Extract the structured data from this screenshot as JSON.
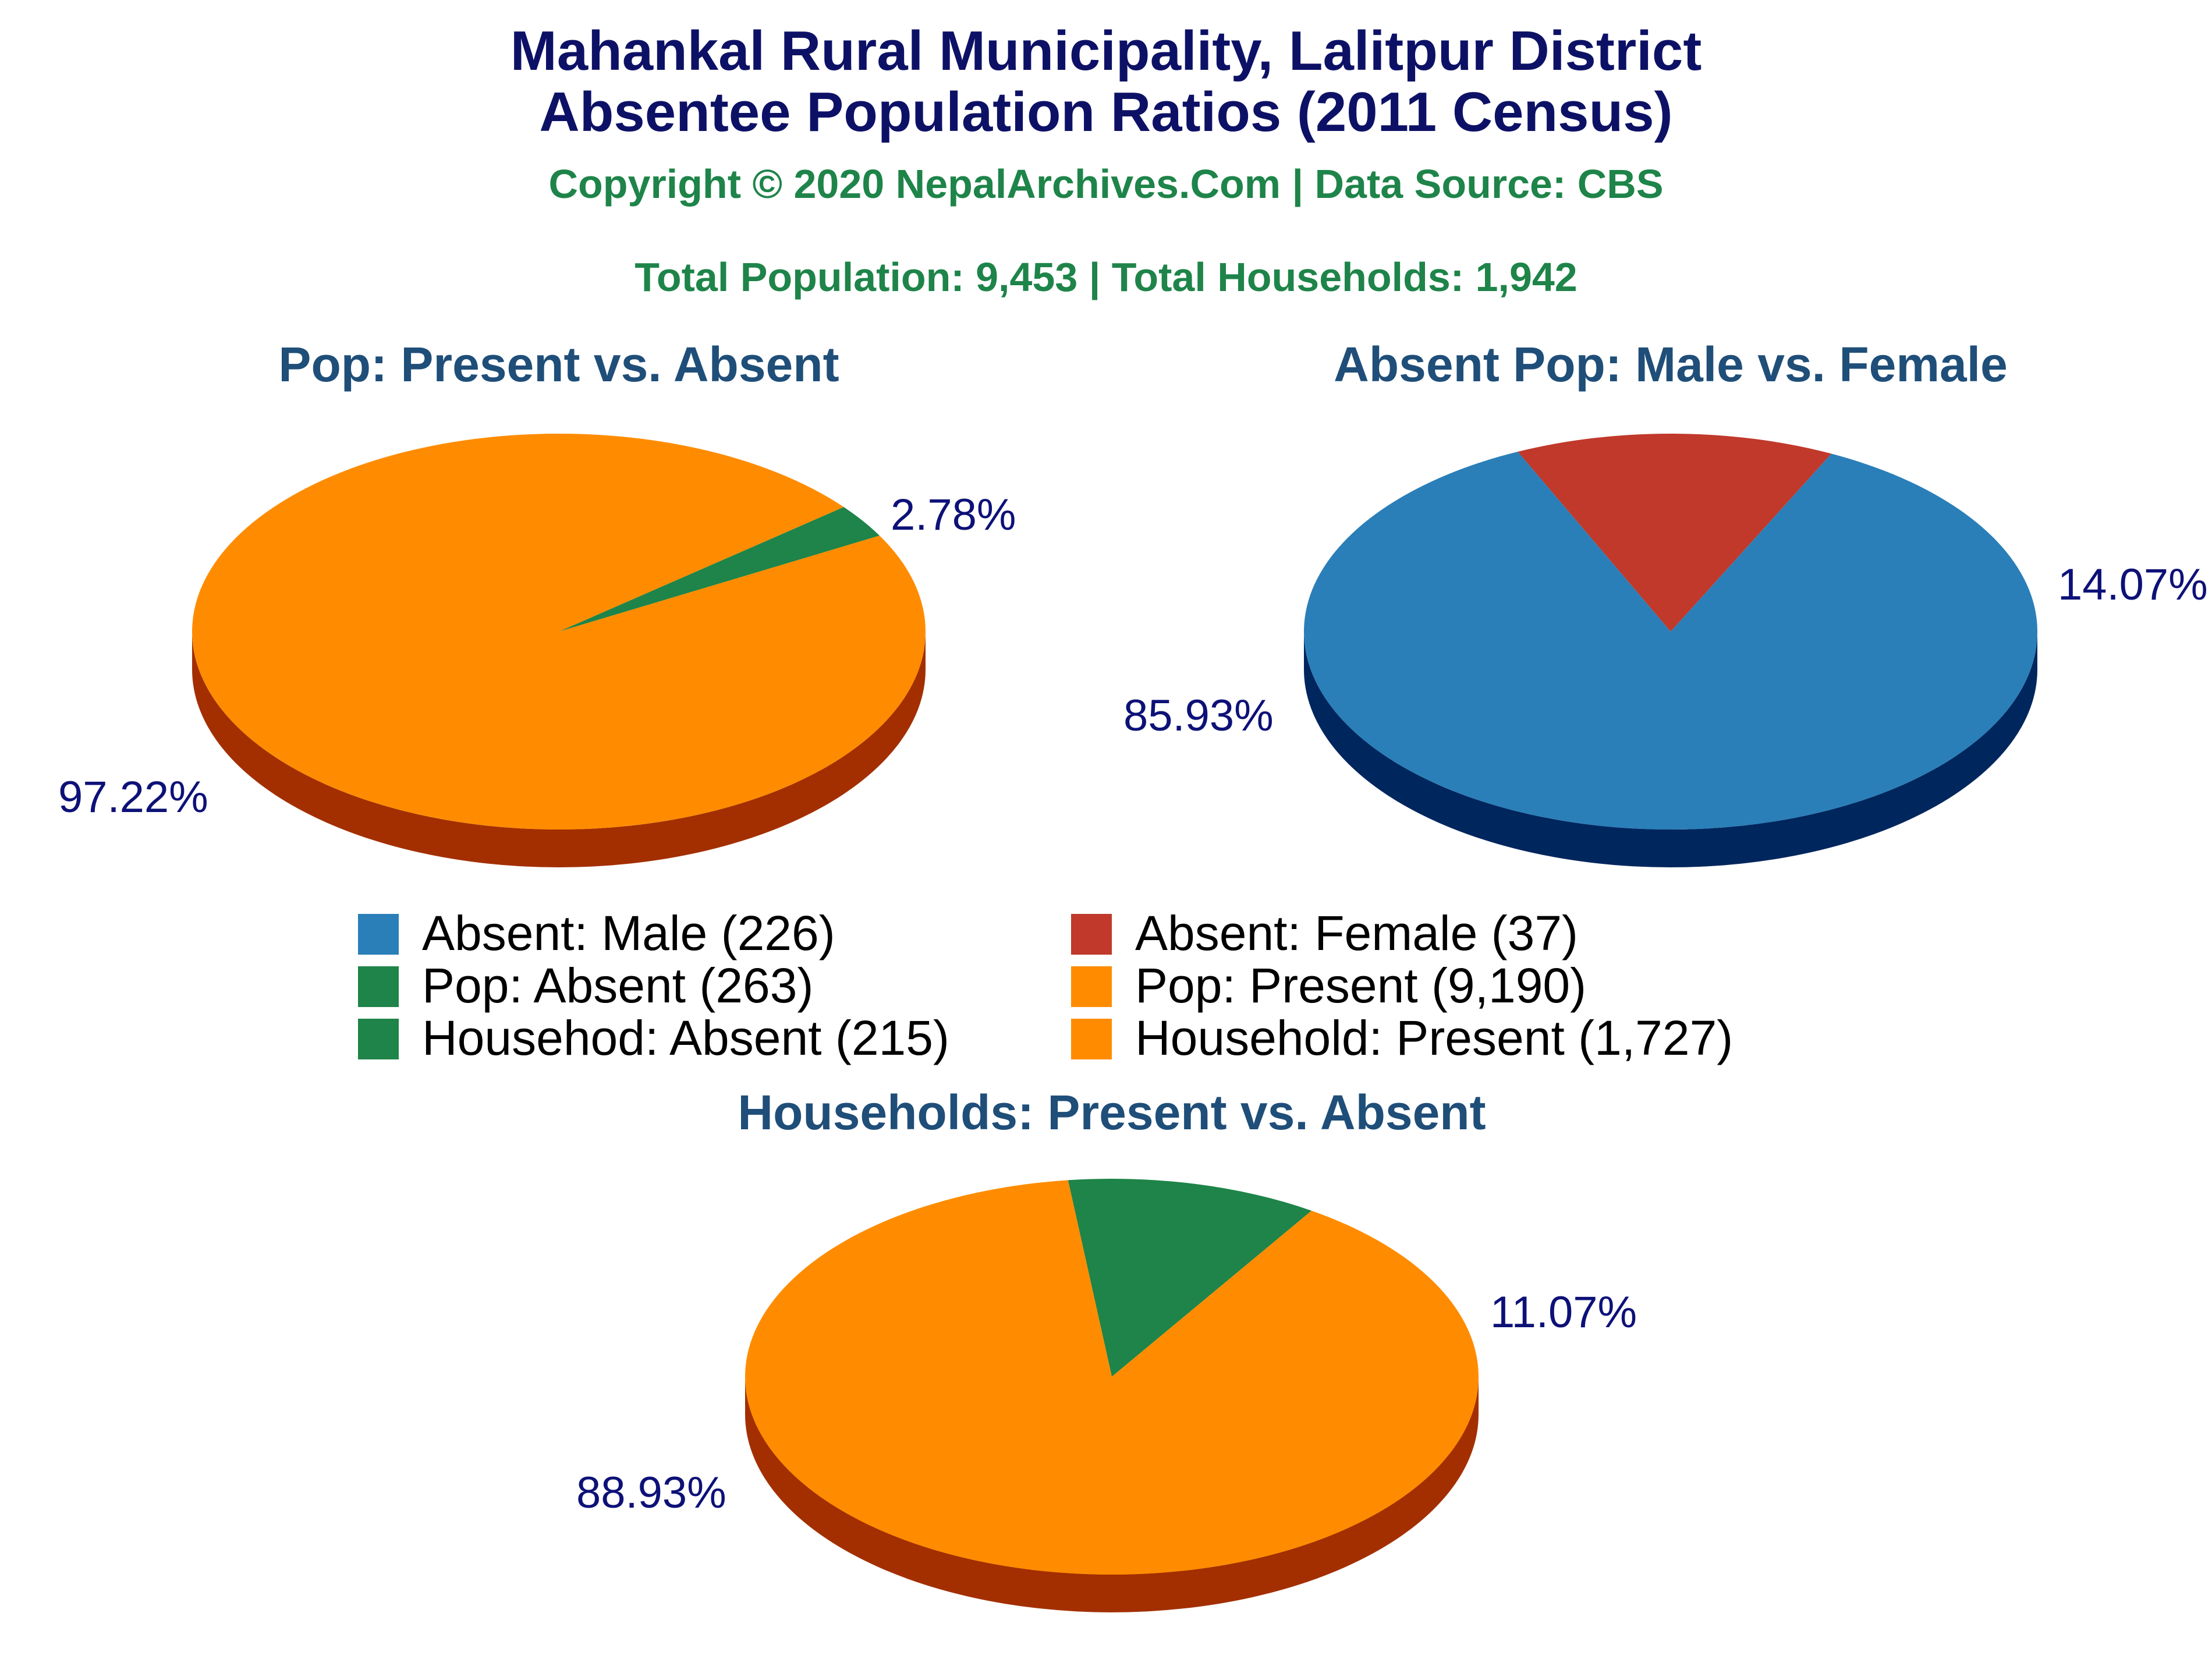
{
  "title_line1": "Mahankal Rural Municipality, Lalitpur District",
  "title_line2": "Absentee Population Ratios (2011 Census)",
  "copyright": "Copyright © 2020 NepalArchives.Com | Data Source: CBS",
  "totals": "Total Population: 9,453 | Total Households: 1,942",
  "colors": {
    "title": "#0d1166",
    "green_text": "#1e8449",
    "subtitle": "#1f4e79",
    "pct_label": "#0d1177"
  },
  "chart_data": [
    {
      "type": "pie",
      "title": "Pop: Present vs. Absent",
      "slices": [
        {
          "label": "Pop: Absent",
          "value": 263,
          "percent_label": "2.78%",
          "color": "#1e8449",
          "side_color": "#0f4a27"
        },
        {
          "label": "Pop: Present",
          "value": 9190,
          "percent_label": "97.22%",
          "color": "#ff8c00",
          "side_color": "#a32f00"
        }
      ]
    },
    {
      "type": "pie",
      "title": "Absent Pop: Male vs. Female",
      "slices": [
        {
          "label": "Absent: Female",
          "value": 37,
          "percent_label": "14.07%",
          "color": "#c0392b",
          "side_color": "#6e0f0f"
        },
        {
          "label": "Absent: Male",
          "value": 226,
          "percent_label": "85.93%",
          "color": "#2a7fb8",
          "side_color": "#00265e"
        }
      ]
    },
    {
      "type": "pie",
      "title": "Households: Present vs. Absent",
      "slices": [
        {
          "label": "Househod: Absent",
          "value": 215,
          "percent_label": "11.07%",
          "color": "#1e8449",
          "side_color": "#0f4a27"
        },
        {
          "label": "Household: Present",
          "value": 1727,
          "percent_label": "88.93%",
          "color": "#ff8c00",
          "side_color": "#a32f00"
        }
      ]
    }
  ],
  "legend": [
    {
      "label": "Absent: Male (226)",
      "color": "#2a7fb8"
    },
    {
      "label": "Absent: Female (37)",
      "color": "#c0392b"
    },
    {
      "label": "Pop: Absent (263)",
      "color": "#1e8449"
    },
    {
      "label": "Pop: Present (9,190)",
      "color": "#ff8c00"
    },
    {
      "label": "Househod: Absent (215)",
      "color": "#1e8449"
    },
    {
      "label": "Household: Present (1,727)",
      "color": "#ff8c00"
    }
  ]
}
